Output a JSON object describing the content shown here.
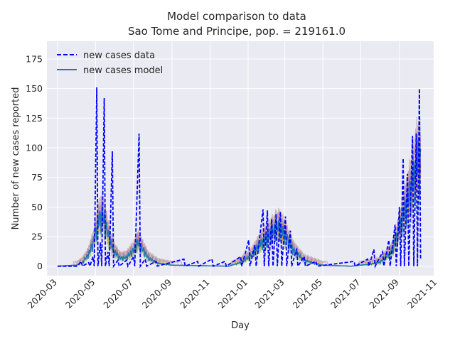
{
  "chart_data": {
    "type": "line",
    "title": "Model comparison to data",
    "subtitle": "Sao Tome and Principe, pop. = 219161.0",
    "xlabel": "Day",
    "ylabel": "Number of new cases reported",
    "xlim": [
      "2020-02-13",
      "2021-10-26"
    ],
    "ylim": [
      -8,
      190
    ],
    "x_ticks": [
      "2020-03",
      "2020-05",
      "2020-07",
      "2020-09",
      "2020-11",
      "2021-01",
      "2021-03",
      "2021-05",
      "2021-07",
      "2021-09",
      "2021-11"
    ],
    "y_ticks": [
      0,
      25,
      50,
      75,
      100,
      125,
      150,
      175
    ],
    "grid": true,
    "legend": {
      "position": "top-left"
    },
    "series": [
      {
        "name": "new cases data",
        "style": "dashed",
        "color": "#0000ff",
        "points": [
          [
            "2020-03-01",
            0
          ],
          [
            "2020-04-01",
            0
          ],
          [
            "2020-04-08",
            4
          ],
          [
            "2020-04-10",
            0
          ],
          [
            "2020-04-20",
            3
          ],
          [
            "2020-04-22",
            0
          ],
          [
            "2020-04-27",
            8
          ],
          [
            "2020-04-29",
            0
          ],
          [
            "2020-05-03",
            151
          ],
          [
            "2020-05-05",
            0
          ],
          [
            "2020-05-09",
            20
          ],
          [
            "2020-05-11",
            0
          ],
          [
            "2020-05-15",
            142
          ],
          [
            "2020-05-17",
            0
          ],
          [
            "2020-05-21",
            12
          ],
          [
            "2020-05-23",
            0
          ],
          [
            "2020-05-28",
            97
          ],
          [
            "2020-05-30",
            0
          ],
          [
            "2020-06-06",
            5
          ],
          [
            "2020-06-08",
            0
          ],
          [
            "2020-06-20",
            5
          ],
          [
            "2020-06-22",
            0
          ],
          [
            "2020-07-01",
            8
          ],
          [
            "2020-07-03",
            0
          ],
          [
            "2020-07-10",
            112
          ],
          [
            "2020-07-12",
            0
          ],
          [
            "2020-07-20",
            6
          ],
          [
            "2020-07-22",
            0
          ],
          [
            "2020-08-06",
            4
          ],
          [
            "2020-08-08",
            0
          ],
          [
            "2020-09-20",
            6
          ],
          [
            "2020-09-22",
            0
          ],
          [
            "2020-10-12",
            4
          ],
          [
            "2020-10-14",
            0
          ],
          [
            "2020-11-04",
            6
          ],
          [
            "2020-11-06",
            0
          ],
          [
            "2020-11-25",
            4
          ],
          [
            "2020-11-27",
            0
          ],
          [
            "2020-12-20",
            8
          ],
          [
            "2020-12-22",
            0
          ],
          [
            "2021-01-02",
            22
          ],
          [
            "2021-01-04",
            0
          ],
          [
            "2021-01-12",
            18
          ],
          [
            "2021-01-14",
            0
          ],
          [
            "2021-01-25",
            48
          ],
          [
            "2021-01-27",
            0
          ],
          [
            "2021-02-01",
            47
          ],
          [
            "2021-02-03",
            0
          ],
          [
            "2021-02-08",
            40
          ],
          [
            "2021-02-10",
            0
          ],
          [
            "2021-02-15",
            44
          ],
          [
            "2021-02-17",
            0
          ],
          [
            "2021-02-22",
            46
          ],
          [
            "2021-02-24",
            0
          ],
          [
            "2021-03-02",
            42
          ],
          [
            "2021-03-04",
            0
          ],
          [
            "2021-03-10",
            30
          ],
          [
            "2021-03-12",
            0
          ],
          [
            "2021-03-20",
            15
          ],
          [
            "2021-03-22",
            0
          ],
          [
            "2021-04-01",
            8
          ],
          [
            "2021-04-03",
            0
          ],
          [
            "2021-04-20",
            4
          ],
          [
            "2021-04-22",
            0
          ],
          [
            "2021-06-20",
            4
          ],
          [
            "2021-06-22",
            0
          ],
          [
            "2021-07-12",
            6
          ],
          [
            "2021-07-14",
            0
          ],
          [
            "2021-07-22",
            14
          ],
          [
            "2021-07-24",
            0
          ],
          [
            "2021-08-05",
            12
          ],
          [
            "2021-08-07",
            0
          ],
          [
            "2021-08-15",
            22
          ],
          [
            "2021-08-17",
            0
          ],
          [
            "2021-08-25",
            35
          ],
          [
            "2021-08-27",
            0
          ],
          [
            "2021-09-01",
            50
          ],
          [
            "2021-09-03",
            0
          ],
          [
            "2021-09-07",
            91
          ],
          [
            "2021-09-09",
            0
          ],
          [
            "2021-09-14",
            78
          ],
          [
            "2021-09-16",
            0
          ],
          [
            "2021-09-22",
            110
          ],
          [
            "2021-09-24",
            0
          ],
          [
            "2021-09-28",
            112
          ],
          [
            "2021-09-30",
            0
          ],
          [
            "2021-10-03",
            150
          ],
          [
            "2021-10-05",
            5
          ]
        ]
      },
      {
        "name": "new cases model",
        "style": "solid",
        "color": "#1f77b4",
        "points": [
          [
            "2020-03-01",
            0
          ],
          [
            "2020-04-01",
            1
          ],
          [
            "2020-04-10",
            4
          ],
          [
            "2020-04-20",
            12
          ],
          [
            "2020-04-28",
            25
          ],
          [
            "2020-05-05",
            44
          ],
          [
            "2020-05-12",
            52
          ],
          [
            "2020-05-18",
            40
          ],
          [
            "2020-05-25",
            24
          ],
          [
            "2020-06-01",
            14
          ],
          [
            "2020-06-10",
            8
          ],
          [
            "2020-06-20",
            9
          ],
          [
            "2020-07-01",
            16
          ],
          [
            "2020-07-08",
            24
          ],
          [
            "2020-07-15",
            18
          ],
          [
            "2020-07-25",
            8
          ],
          [
            "2020-08-10",
            3
          ],
          [
            "2020-09-01",
            1
          ],
          [
            "2020-12-01",
            0
          ],
          [
            "2020-12-20",
            4
          ],
          [
            "2021-01-05",
            10
          ],
          [
            "2021-01-20",
            22
          ],
          [
            "2021-02-05",
            32
          ],
          [
            "2021-02-18",
            40
          ],
          [
            "2021-03-01",
            32
          ],
          [
            "2021-03-15",
            16
          ],
          [
            "2021-04-01",
            6
          ],
          [
            "2021-05-01",
            1
          ],
          [
            "2021-06-15",
            0
          ],
          [
            "2021-07-15",
            2
          ],
          [
            "2021-08-01",
            4
          ],
          [
            "2021-08-20",
            15
          ],
          [
            "2021-09-05",
            45
          ],
          [
            "2021-09-20",
            80
          ],
          [
            "2021-10-01",
            108
          ],
          [
            "2021-10-05",
            100
          ]
        ]
      }
    ]
  }
}
